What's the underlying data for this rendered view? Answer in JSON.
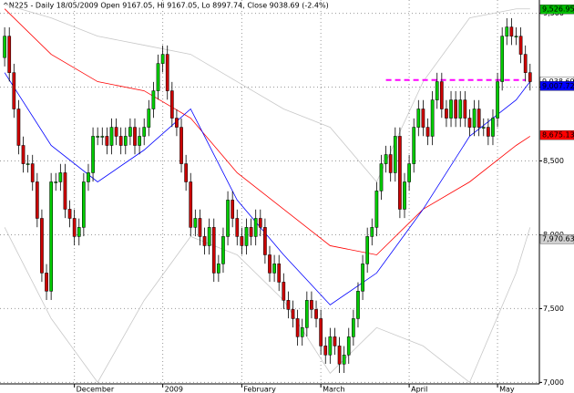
{
  "chart_data": {
    "type": "candlestick",
    "title": "^N225 - Daily 18/05/2009 Open 9167.05, Hi 9167.05, Lo 8997.74, Close 9038.69 (-2.4%)",
    "xlim": [
      -1,
      115
    ],
    "ylim": [
      6990,
      9590
    ],
    "yticks": [
      {
        "value": 7000,
        "label": "7,000"
      },
      {
        "value": 7500,
        "label": "7,500"
      },
      {
        "value": 8000,
        "label": "8,000"
      },
      {
        "value": 8500,
        "label": "8,500"
      },
      {
        "value": 9000,
        "label": "9,000"
      },
      {
        "value": 9500,
        "label": "9,500"
      }
    ],
    "xticks": [
      {
        "value": 15,
        "label": "December"
      },
      {
        "value": 34,
        "label": "2009"
      },
      {
        "value": 51,
        "label": "February"
      },
      {
        "value": 68,
        "label": "March"
      },
      {
        "value": 87,
        "label": "April"
      },
      {
        "value": 106,
        "label": "May"
      }
    ],
    "grid": true,
    "up_color": "#00cc00",
    "down_color": "#cc0000",
    "candles": {
      "open": [
        9200,
        9345,
        9098,
        8852,
        8605,
        8481,
        8481,
        8358,
        8111,
        7741,
        7618,
        8358,
        8358,
        8420,
        8173,
        8111,
        7988,
        8050,
        8358,
        8420,
        8667,
        8667,
        8667,
        8605,
        8728,
        8667,
        8605,
        8667,
        8728,
        8605,
        8667,
        8728,
        8852,
        8975,
        9160,
        9222,
        8975,
        8790,
        8728,
        8481,
        8358,
        8050,
        8111,
        7988,
        7926,
        8050,
        7741,
        7803,
        7988,
        8235,
        8111,
        7988,
        7926,
        8050,
        7988,
        8111,
        8050,
        7864,
        7741,
        7803,
        7679,
        7556,
        7494,
        7432,
        7309,
        7371,
        7556,
        7494,
        7432,
        7247,
        7186,
        7309,
        7247,
        7124,
        7186,
        7309,
        7432,
        7618,
        7803,
        7988,
        8050,
        8297,
        8481,
        8543,
        8420,
        8667,
        8173,
        8358,
        8481,
        8728,
        8852,
        8728,
        8667,
        8913,
        9037,
        8852,
        8790,
        8913,
        8790,
        8913,
        8790,
        8728,
        8852,
        8728,
        8728,
        8667,
        8790,
        9037,
        9345,
        9407,
        9345,
        9345,
        9222,
        9098
      ],
      "high": [
        9405,
        9405,
        9158,
        8912,
        8665,
        8541,
        8541,
        8418,
        8171,
        7801,
        8418,
        8418,
        8480,
        8480,
        8233,
        8171,
        8110,
        8418,
        8480,
        8727,
        8727,
        8727,
        8727,
        8788,
        8788,
        8727,
        8727,
        8788,
        8788,
        8727,
        8788,
        8912,
        9035,
        9220,
        9282,
        9282,
        9035,
        8850,
        8788,
        8541,
        8418,
        8171,
        8171,
        8048,
        8110,
        8110,
        7863,
        8048,
        8295,
        8295,
        8171,
        8048,
        8110,
        8110,
        8171,
        8171,
        8110,
        7924,
        7863,
        7863,
        7739,
        7616,
        7554,
        7492,
        7431,
        7616,
        7616,
        7554,
        7492,
        7307,
        7369,
        7369,
        7307,
        7246,
        7369,
        7492,
        7678,
        7863,
        8048,
        8110,
        8357,
        8541,
        8603,
        8603,
        8727,
        8727,
        8418,
        8541,
        8788,
        8912,
        8912,
        8788,
        8973,
        9097,
        9097,
        8912,
        8973,
        8973,
        8973,
        8973,
        8850,
        8912,
        8912,
        8788,
        8788,
        8850,
        9097,
        9405,
        9467,
        9467,
        9405,
        9405,
        9282,
        9158
      ],
      "low": [
        9140,
        9038,
        8792,
        8545,
        8421,
        8421,
        8298,
        8051,
        7681,
        7558,
        7558,
        8298,
        8298,
        8113,
        8051,
        7928,
        7928,
        7990,
        8298,
        8360,
        8607,
        8607,
        8545,
        8545,
        8607,
        8545,
        8545,
        8607,
        8545,
        8545,
        8607,
        8668,
        8792,
        8915,
        9100,
        8915,
        8730,
        8668,
        8421,
        8298,
        7990,
        7990,
        7928,
        7866,
        7866,
        7681,
        7681,
        7743,
        7928,
        8051,
        7928,
        7866,
        7866,
        7928,
        7928,
        7990,
        7804,
        7681,
        7681,
        7619,
        7496,
        7434,
        7372,
        7249,
        7249,
        7311,
        7434,
        7372,
        7187,
        7126,
        7126,
        7187,
        7064,
        7064,
        7126,
        7249,
        7372,
        7558,
        7743,
        7928,
        7990,
        8237,
        8421,
        8360,
        8360,
        8113,
        8113,
        8298,
        8421,
        8668,
        8668,
        8607,
        8607,
        8853,
        8792,
        8730,
        8730,
        8730,
        8730,
        8730,
        8668,
        8668,
        8668,
        8668,
        8607,
        8607,
        8730,
        8977,
        9285,
        9285,
        9285,
        9162,
        9038,
        8977
      ],
      "close": [
        9345,
        9098,
        8852,
        8605,
        8481,
        8481,
        8358,
        8111,
        7741,
        7618,
        8358,
        8358,
        8420,
        8173,
        8111,
        7988,
        8050,
        8358,
        8420,
        8667,
        8667,
        8667,
        8605,
        8728,
        8667,
        8605,
        8667,
        8728,
        8605,
        8667,
        8728,
        8852,
        8975,
        9160,
        9222,
        8975,
        8790,
        8728,
        8481,
        8358,
        8050,
        8111,
        7988,
        7926,
        8050,
        7741,
        7803,
        7988,
        8235,
        8111,
        7988,
        7926,
        8050,
        7988,
        8111,
        8050,
        7864,
        7741,
        7803,
        7679,
        7556,
        7494,
        7432,
        7309,
        7371,
        7556,
        7494,
        7432,
        7247,
        7186,
        7309,
        7247,
        7124,
        7186,
        7309,
        7432,
        7618,
        7803,
        7988,
        8050,
        8297,
        8481,
        8543,
        8420,
        8667,
        8173,
        8358,
        8481,
        8728,
        8852,
        8728,
        8667,
        8913,
        9037,
        8852,
        8790,
        8913,
        8790,
        8913,
        8790,
        8728,
        8852,
        8728,
        8728,
        8667,
        8790,
        9037,
        9345,
        9407,
        9345,
        9345,
        9222,
        9098,
        9037
      ]
    },
    "series": [
      {
        "color": "#c8c8c8",
        "x": [
          0,
          10,
          20,
          30,
          40,
          50,
          60,
          70,
          80,
          90,
          100,
          110,
          113
        ],
        "values": [
          9560,
          9469,
          9345,
          9284,
          9222,
          9037,
          8852,
          8728,
          8358,
          9037,
          9469,
          9530,
          9530
        ]
      },
      {
        "color": "#c8c8c8",
        "x": [
          0,
          10,
          20,
          30,
          40,
          50,
          60,
          70,
          80,
          90,
          100,
          110,
          113
        ],
        "values": [
          8050,
          7433,
          7000,
          7556,
          7988,
          7864,
          7556,
          7062,
          7371,
          7247,
          7000,
          7741,
          8050
        ]
      },
      {
        "color": "#ff0000",
        "x": [
          0,
          10,
          20,
          30,
          40,
          50,
          60,
          70,
          80,
          90,
          100,
          110,
          113
        ],
        "values": [
          9530,
          9222,
          9037,
          8975,
          8790,
          8420,
          8173,
          7926,
          7864,
          8173,
          8358,
          8605,
          8667
        ]
      },
      {
        "color": "#0000ff",
        "x": [
          0,
          10,
          20,
          30,
          40,
          50,
          60,
          70,
          80,
          90,
          100,
          110,
          113
        ],
        "values": [
          9098,
          8605,
          8358,
          8574,
          8852,
          8235,
          7864,
          7525,
          7741,
          8173,
          8667,
          8913,
          9037
        ]
      }
    ],
    "hline": {
      "value": 9048,
      "x": [
        82,
        112
      ],
      "color": "#ff00ff"
    },
    "price_labels": [
      {
        "value": 9526.95,
        "label": "9,526.95",
        "color": "#00bb00"
      },
      {
        "value": 9038.69,
        "label": "9,038.69",
        "color": "#ffffff"
      },
      {
        "value": 9007.72,
        "label": "9,007.72",
        "color": "#0000ff"
      },
      {
        "value": 8675.13,
        "label": "8,675.13",
        "color": "#ff0000"
      },
      {
        "value": 7970.63,
        "label": "7,970.63",
        "color": "#d0d0d0"
      }
    ]
  }
}
